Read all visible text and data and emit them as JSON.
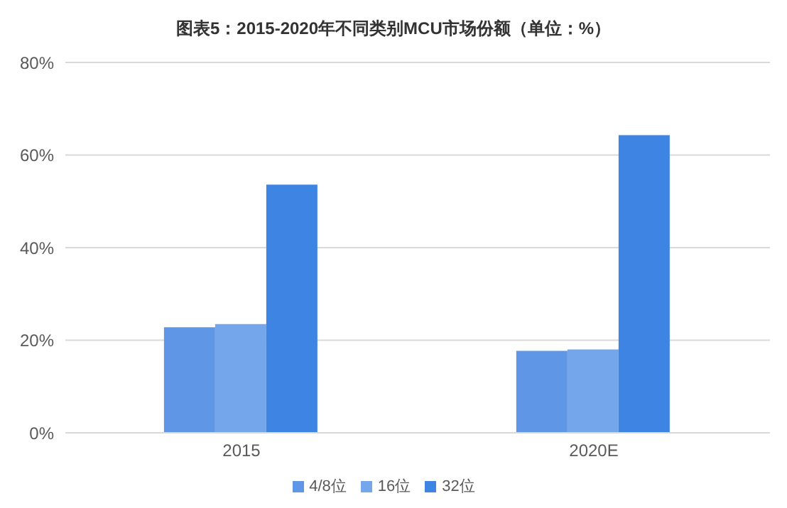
{
  "chart_data": {
    "type": "bar",
    "title": "图表5：2015-2020年不同类别MCU市场份额（单位：%）",
    "categories": [
      "2015",
      "2020E"
    ],
    "series": [
      {
        "name": "4/8位",
        "color": "#5f97e6",
        "values": [
          22.8,
          17.7
        ]
      },
      {
        "name": "16位",
        "color": "#74a6ec",
        "values": [
          23.5,
          18
        ]
      },
      {
        "name": "32位",
        "color": "#3e84e2",
        "values": [
          53.6,
          64.3
        ]
      }
    ],
    "ylim": [
      0,
      80
    ],
    "yticks": [
      {
        "value": 0,
        "label": "0%"
      },
      {
        "value": 20,
        "label": "20%"
      },
      {
        "value": 40,
        "label": "40%"
      },
      {
        "value": 60,
        "label": "60%"
      },
      {
        "value": 80,
        "label": "80%"
      }
    ],
    "grid": "y",
    "legend": "bottom"
  }
}
